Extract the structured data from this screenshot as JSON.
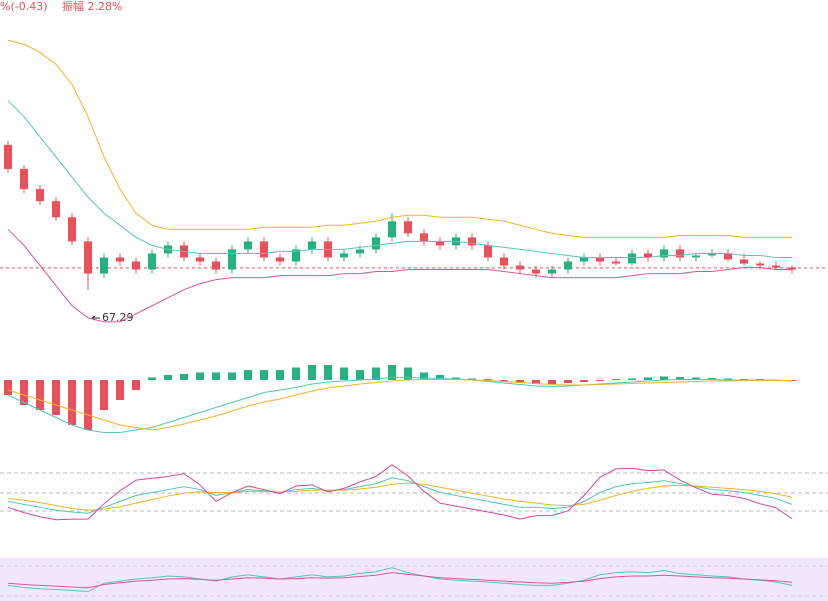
{
  "header": {
    "change": "%(-0.43)",
    "amplitude": "振幅 2.28%"
  },
  "chart_data": [
    {
      "type": "candlestick",
      "annotation": "67.29",
      "annotation_index": 5,
      "ylim": [
        65.8,
        74.5
      ],
      "up_color": "#26b27f",
      "down_color": "#e8505b",
      "last_price": 67.84,
      "last_price_color": "#e8505b",
      "open": [
        70.9,
        70.3,
        69.8,
        69.5,
        69.1,
        68.5,
        67.7,
        68.1,
        68.0,
        67.8,
        68.2,
        68.4,
        68.1,
        68.0,
        67.8,
        68.3,
        68.5,
        68.1,
        68.0,
        68.3,
        68.5,
        68.1,
        68.2,
        68.3,
        68.6,
        69.0,
        68.7,
        68.5,
        68.4,
        68.6,
        68.4,
        68.1,
        67.9,
        67.8,
        67.7,
        67.8,
        68.0,
        68.1,
        68.0,
        67.95,
        68.2,
        68.1,
        68.3,
        68.1,
        68.15,
        68.2,
        68.05,
        67.95,
        67.9,
        67.85
      ],
      "high": [
        71.0,
        70.4,
        69.9,
        69.6,
        69.2,
        68.6,
        68.2,
        68.2,
        68.1,
        68.3,
        68.5,
        68.5,
        68.2,
        68.1,
        68.4,
        68.6,
        68.6,
        68.2,
        68.4,
        68.6,
        68.6,
        68.3,
        68.4,
        68.7,
        69.2,
        69.1,
        68.8,
        68.6,
        68.7,
        68.7,
        68.5,
        68.2,
        68.0,
        67.9,
        67.9,
        68.1,
        68.2,
        68.2,
        68.1,
        68.3,
        68.3,
        68.4,
        68.4,
        68.2,
        68.3,
        68.3,
        68.2,
        68.0,
        68.0,
        67.9
      ],
      "low": [
        70.2,
        69.7,
        69.4,
        69.0,
        68.4,
        67.29,
        67.6,
        67.9,
        67.7,
        67.7,
        68.1,
        68.0,
        67.9,
        67.7,
        67.7,
        68.2,
        68.0,
        67.9,
        67.9,
        68.2,
        68.0,
        68.0,
        68.1,
        68.2,
        68.5,
        68.6,
        68.4,
        68.3,
        68.3,
        68.3,
        68.0,
        67.8,
        67.7,
        67.6,
        67.6,
        67.7,
        67.9,
        67.9,
        67.9,
        67.9,
        68.0,
        68.0,
        68.0,
        68.0,
        68.1,
        68.0,
        67.9,
        67.8,
        67.8,
        67.7
      ],
      "close": [
        70.3,
        69.8,
        69.5,
        69.1,
        68.5,
        67.7,
        68.1,
        68.0,
        67.8,
        68.2,
        68.4,
        68.1,
        68.0,
        67.8,
        68.3,
        68.5,
        68.1,
        68.0,
        68.3,
        68.5,
        68.1,
        68.2,
        68.3,
        68.6,
        69.0,
        68.7,
        68.5,
        68.4,
        68.6,
        68.4,
        68.1,
        67.9,
        67.8,
        67.7,
        67.8,
        68.0,
        68.1,
        68.0,
        67.95,
        68.2,
        68.1,
        68.3,
        68.1,
        68.15,
        68.2,
        68.05,
        67.95,
        67.9,
        67.85,
        67.8
      ],
      "series": [
        {
          "color": "#f0b429",
          "values": [
            73.5,
            73.4,
            73.2,
            72.9,
            72.4,
            71.6,
            70.6,
            69.8,
            69.2,
            68.9,
            68.8,
            68.8,
            68.8,
            68.8,
            68.8,
            68.8,
            68.85,
            68.85,
            68.85,
            68.85,
            68.9,
            68.9,
            68.95,
            69.0,
            69.1,
            69.15,
            69.15,
            69.1,
            69.1,
            69.1,
            69.05,
            69.0,
            68.9,
            68.8,
            68.7,
            68.65,
            68.6,
            68.6,
            68.6,
            68.6,
            68.6,
            68.6,
            68.65,
            68.65,
            68.65,
            68.65,
            68.6,
            68.6,
            68.6,
            68.6
          ]
        },
        {
          "color": "#4fc8b8",
          "values": [
            72.0,
            71.6,
            71.1,
            70.6,
            70.1,
            69.6,
            69.2,
            68.9,
            68.6,
            68.4,
            68.3,
            68.25,
            68.2,
            68.2,
            68.2,
            68.2,
            68.2,
            68.25,
            68.25,
            68.3,
            68.3,
            68.3,
            68.35,
            68.4,
            68.45,
            68.5,
            68.5,
            68.5,
            68.5,
            68.45,
            68.4,
            68.35,
            68.3,
            68.25,
            68.2,
            68.15,
            68.1,
            68.1,
            68.1,
            68.1,
            68.1,
            68.15,
            68.15,
            68.2,
            68.2,
            68.2,
            68.15,
            68.15,
            68.1,
            68.1
          ]
        },
        {
          "color": "#e0529c",
          "values": [
            68.8,
            68.4,
            67.9,
            67.4,
            66.9,
            66.6,
            66.5,
            66.5,
            66.7,
            66.9,
            67.1,
            67.3,
            67.45,
            67.55,
            67.6,
            67.6,
            67.6,
            67.65,
            67.65,
            67.65,
            67.65,
            67.7,
            67.7,
            67.75,
            67.75,
            67.8,
            67.8,
            67.8,
            67.8,
            67.8,
            67.8,
            67.75,
            67.7,
            67.65,
            67.6,
            67.6,
            67.6,
            67.6,
            67.6,
            67.65,
            67.7,
            67.7,
            67.7,
            67.75,
            67.75,
            67.8,
            67.85,
            67.85,
            67.8,
            67.8
          ]
        }
      ]
    },
    {
      "type": "macd",
      "ylim": [
        -1.2,
        0.6
      ],
      "up_color": "#26b27f",
      "down_color": "#e8505b",
      "values": [
        -0.3,
        -0.5,
        -0.6,
        -0.7,
        -0.9,
        -1.0,
        -0.6,
        -0.4,
        -0.2,
        0.05,
        0.1,
        0.12,
        0.15,
        0.15,
        0.15,
        0.2,
        0.2,
        0.2,
        0.25,
        0.3,
        0.3,
        0.25,
        0.2,
        0.25,
        0.3,
        0.25,
        0.15,
        0.1,
        0.05,
        0.03,
        0.02,
        -0.03,
        -0.06,
        -0.08,
        -0.08,
        -0.06,
        -0.04,
        -0.02,
        0.02,
        0.03,
        0.05,
        0.07,
        0.06,
        0.05,
        0.04,
        0.03,
        0.02,
        0.02,
        0.0,
        -0.02
      ],
      "series": [
        {
          "color": "#4fc8b8",
          "values": [
            -0.3,
            -0.45,
            -0.6,
            -0.75,
            -0.9,
            -1.0,
            -1.05,
            -1.05,
            -1.0,
            -0.95,
            -0.85,
            -0.75,
            -0.65,
            -0.55,
            -0.45,
            -0.35,
            -0.25,
            -0.2,
            -0.15,
            -0.08,
            -0.04,
            -0.02,
            0.0,
            0.02,
            0.05,
            0.05,
            0.04,
            0.03,
            0.02,
            0.0,
            -0.03,
            -0.06,
            -0.09,
            -0.12,
            -0.13,
            -0.12,
            -0.1,
            -0.08,
            -0.06,
            -0.04,
            -0.02,
            0.0,
            0.01,
            0.01,
            0.01,
            0.0,
            0.0,
            0.0,
            0.0,
            -0.02
          ]
        },
        {
          "color": "#f0b429",
          "values": [
            -0.2,
            -0.3,
            -0.4,
            -0.5,
            -0.6,
            -0.7,
            -0.8,
            -0.9,
            -0.95,
            -1.0,
            -0.95,
            -0.88,
            -0.8,
            -0.72,
            -0.62,
            -0.52,
            -0.44,
            -0.38,
            -0.3,
            -0.22,
            -0.16,
            -0.12,
            -0.08,
            -0.05,
            -0.02,
            0.0,
            0.01,
            0.01,
            0.01,
            0.0,
            -0.01,
            -0.03,
            -0.05,
            -0.07,
            -0.09,
            -0.1,
            -0.1,
            -0.09,
            -0.08,
            -0.07,
            -0.06,
            -0.05,
            -0.04,
            -0.03,
            -0.02,
            -0.02,
            -0.01,
            -0.01,
            -0.01,
            -0.01
          ]
        }
      ]
    },
    {
      "type": "kdj",
      "ylim": [
        -5,
        110
      ],
      "series": [
        {
          "color": "#4fc8b8",
          "values": [
            40,
            35,
            30,
            25,
            22,
            20,
            30,
            40,
            50,
            55,
            60,
            65,
            60,
            50,
            55,
            60,
            58,
            55,
            60,
            62,
            58,
            60,
            65,
            70,
            80,
            75,
            65,
            55,
            50,
            45,
            40,
            35,
            30,
            30,
            28,
            30,
            40,
            55,
            65,
            70,
            72,
            75,
            70,
            65,
            60,
            58,
            55,
            50,
            45,
            35
          ]
        },
        {
          "color": "#f0b429",
          "values": [
            45,
            42,
            38,
            33,
            28,
            25,
            27,
            31,
            37,
            43,
            49,
            54,
            56,
            55,
            55,
            57,
            57,
            56,
            57,
            59,
            59,
            59,
            61,
            64,
            69,
            71,
            69,
            64,
            59,
            54,
            49,
            44,
            40,
            37,
            34,
            33,
            35,
            42,
            50,
            57,
            62,
            66,
            67,
            66,
            64,
            62,
            60,
            57,
            53,
            47
          ]
        },
        {
          "color": "#d9469e",
          "values": [
            30,
            21,
            14,
            9,
            10,
            10,
            36,
            58,
            76,
            79,
            82,
            87,
            68,
            40,
            55,
            66,
            60,
            53,
            66,
            68,
            56,
            62,
            73,
            82,
            102,
            83,
            57,
            37,
            32,
            27,
            22,
            17,
            10,
            16,
            16,
            24,
            50,
            81,
            95,
            96,
            92,
            93,
            76,
            63,
            52,
            50,
            45,
            36,
            29,
            11
          ]
        }
      ]
    },
    {
      "type": "rsi",
      "ylim": [
        0,
        90
      ],
      "series": [
        {
          "color": "#4fc8b8",
          "values": [
            30,
            25,
            22,
            20,
            18,
            15,
            35,
            40,
            45,
            48,
            52,
            50,
            45,
            40,
            50,
            55,
            50,
            45,
            50,
            55,
            50,
            52,
            58,
            62,
            72,
            60,
            52,
            45,
            42,
            40,
            38,
            35,
            32,
            30,
            30,
            35,
            42,
            55,
            60,
            62,
            60,
            65,
            58,
            55,
            52,
            50,
            45,
            42,
            38,
            30
          ]
        },
        {
          "color": "#e0529c",
          "values": [
            35,
            32,
            30,
            28,
            26,
            24,
            32,
            36,
            40,
            42,
            45,
            46,
            44,
            42,
            45,
            48,
            47,
            45,
            46,
            48,
            47,
            48,
            51,
            54,
            60,
            56,
            52,
            48,
            46,
            44,
            42,
            40,
            38,
            36,
            35,
            37,
            40,
            46,
            50,
            52,
            52,
            54,
            52,
            50,
            48,
            47,
            45,
            43,
            41,
            37
          ]
        }
      ]
    }
  ]
}
